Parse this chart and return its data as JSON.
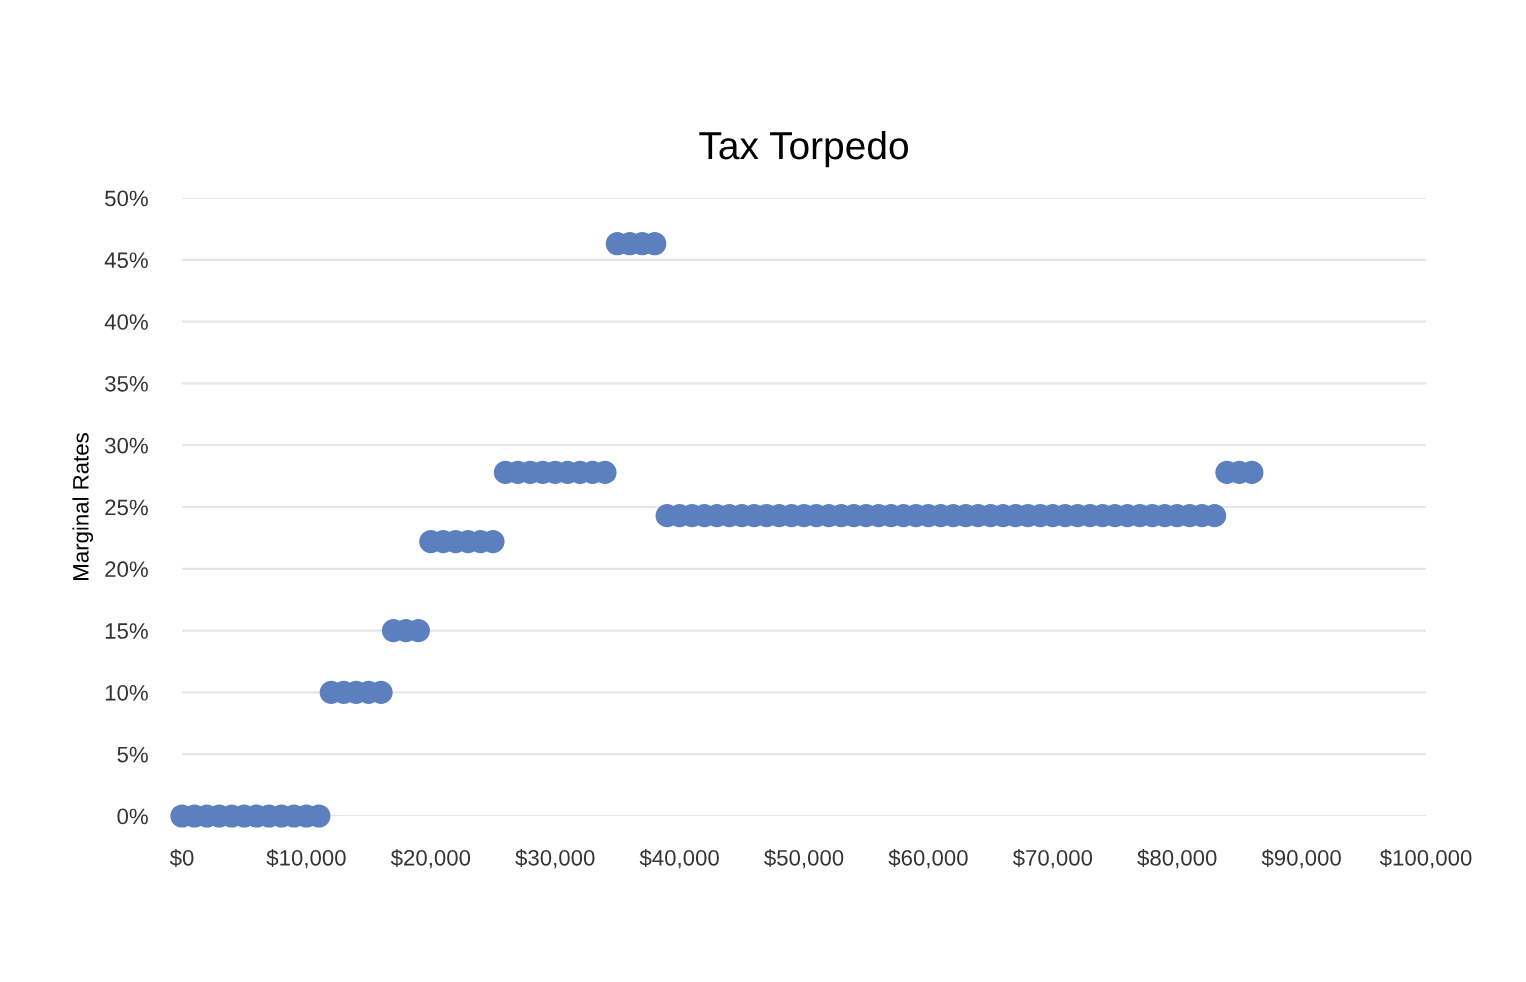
{
  "chart_data": {
    "type": "scatter",
    "title": "Tax Torpedo",
    "ylabel": "Marginal Rates",
    "series": [
      {
        "color": "#5b7fbf",
        "x": [
          0,
          1000,
          2000,
          3000,
          4000,
          5000,
          6000,
          7000,
          8000,
          9000,
          10000,
          11000,
          12000,
          13000,
          14000,
          15000,
          16000,
          17000,
          18000,
          19000,
          20000,
          21000,
          22000,
          23000,
          24000,
          25000,
          26000,
          27000,
          28000,
          29000,
          30000,
          31000,
          32000,
          33000,
          34000,
          35000,
          36000,
          37000,
          38000,
          39000,
          40000,
          41000,
          42000,
          43000,
          44000,
          45000,
          46000,
          47000,
          48000,
          49000,
          50000,
          51000,
          52000,
          53000,
          54000,
          55000,
          56000,
          57000,
          58000,
          59000,
          60000,
          61000,
          62000,
          63000,
          64000,
          65000,
          66000,
          67000,
          68000,
          69000,
          70000,
          71000,
          72000,
          73000,
          74000,
          75000,
          76000,
          77000,
          78000,
          79000,
          80000,
          81000,
          82000,
          83000,
          84000,
          85000,
          86000
        ],
        "values": [
          0,
          0,
          0,
          0,
          0,
          0,
          0,
          0,
          0,
          0,
          0,
          0,
          10,
          10,
          10,
          10,
          10,
          15,
          15,
          15,
          22.2,
          22.2,
          22.2,
          22.2,
          22.2,
          22.2,
          27.8,
          27.8,
          27.8,
          27.8,
          27.8,
          27.8,
          27.8,
          27.8,
          27.8,
          46.3,
          46.3,
          46.3,
          46.3,
          24.3,
          24.3,
          24.3,
          24.3,
          24.3,
          24.3,
          24.3,
          24.3,
          24.3,
          24.3,
          24.3,
          24.3,
          24.3,
          24.3,
          24.3,
          24.3,
          24.3,
          24.3,
          24.3,
          24.3,
          24.3,
          24.3,
          24.3,
          24.3,
          24.3,
          24.3,
          24.3,
          24.3,
          24.3,
          24.3,
          24.3,
          24.3,
          24.3,
          24.3,
          24.3,
          24.3,
          24.3,
          24.3,
          24.3,
          24.3,
          24.3,
          24.3,
          24.3,
          24.3,
          24.3,
          27.8,
          27.8,
          27.8
        ]
      }
    ],
    "xlim": [
      0,
      100000
    ],
    "xticks": [
      {
        "value": 0,
        "label": "$0"
      },
      {
        "value": 10000,
        "label": "$10,000"
      },
      {
        "value": 20000,
        "label": "$20,000"
      },
      {
        "value": 30000,
        "label": "$30,000"
      },
      {
        "value": 40000,
        "label": "$40,000"
      },
      {
        "value": 50000,
        "label": "$50,000"
      },
      {
        "value": 60000,
        "label": "$60,000"
      },
      {
        "value": 70000,
        "label": "$70,000"
      },
      {
        "value": 80000,
        "label": "$80,000"
      },
      {
        "value": 90000,
        "label": "$90,000"
      },
      {
        "value": 100000,
        "label": "$100,000"
      }
    ],
    "ylim": [
      0,
      50
    ],
    "yticks": [
      {
        "value": 0,
        "label": "0%"
      },
      {
        "value": 5,
        "label": "5%"
      },
      {
        "value": 10,
        "label": "10%"
      },
      {
        "value": 15,
        "label": "15%"
      },
      {
        "value": 20,
        "label": "20%"
      },
      {
        "value": 25,
        "label": "25%"
      },
      {
        "value": 30,
        "label": "30%"
      },
      {
        "value": 35,
        "label": "35%"
      },
      {
        "value": 40,
        "label": "40%"
      },
      {
        "value": 45,
        "label": "45%"
      },
      {
        "value": 50,
        "label": "50%"
      }
    ],
    "grid": "y",
    "marker": "circle"
  }
}
